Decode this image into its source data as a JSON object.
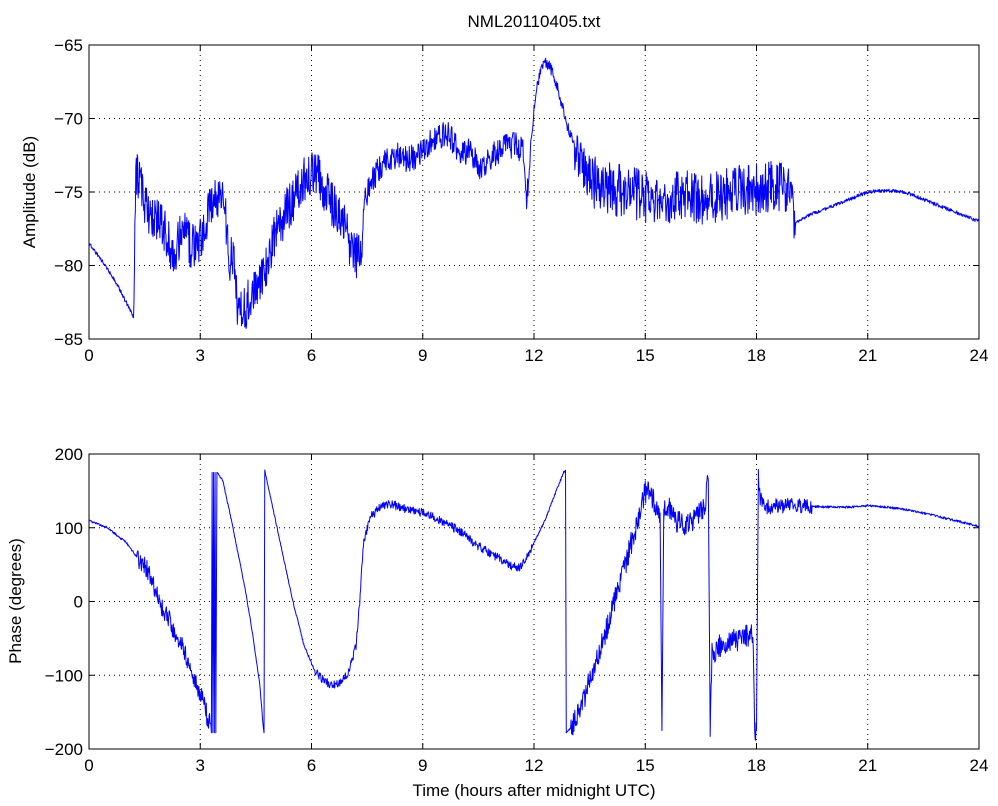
{
  "chart_data": [
    {
      "type": "line",
      "title": "NML20110405.txt",
      "xlabel": "",
      "ylabel": "Amplitude (dB)",
      "xlim": [
        0,
        24
      ],
      "ylim": [
        -85,
        -65
      ],
      "xticks": [
        "0",
        "3",
        "6",
        "9",
        "12",
        "15",
        "18",
        "21",
        "24"
      ],
      "yticks": [
        "−85",
        "−80",
        "−75",
        "−70",
        "−65"
      ],
      "grid": true,
      "colors": {
        "line": "#0000ff",
        "grid": "#000000",
        "axes": "#000000"
      },
      "series": [
        {
          "x": [
            0,
            0.3,
            0.7,
            1.0,
            1.15,
            1.2,
            1.25,
            1.3,
            1.5,
            1.7,
            1.9,
            2.1,
            2.3,
            2.5,
            2.7,
            2.9,
            3.1,
            3.3,
            3.5,
            3.65,
            3.8,
            3.9,
            4.0,
            4.2,
            4.4,
            4.6,
            4.8,
            5.0,
            5.2,
            5.4,
            5.5,
            5.7,
            5.9,
            6.1,
            6.3,
            6.5,
            6.7,
            6.9,
            7.1,
            7.3,
            7.35,
            7.4,
            7.6,
            7.8,
            8.0,
            8.3,
            8.6,
            8.9,
            9.2,
            9.5,
            9.7,
            10.0,
            10.3,
            10.6,
            10.9,
            11.2,
            11.5,
            11.7,
            11.8,
            11.85,
            11.9,
            12.0,
            12.1,
            12.3,
            12.5,
            12.7,
            12.9,
            13.1,
            13.3,
            13.5,
            13.8,
            14.1,
            14.5,
            15.0,
            15.5,
            16.0,
            16.5,
            17.0,
            17.5,
            18.0,
            18.5,
            18.9,
            19.05,
            19.1,
            19.5,
            20.0,
            20.5,
            21.0,
            21.5,
            22.0,
            22.5,
            23.0,
            23.5,
            24.0
          ],
          "y": [
            -78.5,
            -79.5,
            -81.0,
            -82.5,
            -83.2,
            -83.5,
            -75.0,
            -73.5,
            -76.0,
            -76.5,
            -76.8,
            -78.0,
            -79.5,
            -77.5,
            -78.5,
            -79.0,
            -77.5,
            -75.5,
            -75.5,
            -75.5,
            -80.0,
            -79.0,
            -82.5,
            -83.0,
            -82.0,
            -81.0,
            -80.0,
            -78.0,
            -77.0,
            -76.0,
            -75.5,
            -74.5,
            -74.0,
            -73.6,
            -74.5,
            -75.5,
            -76.5,
            -77.5,
            -79.0,
            -79.5,
            -80.0,
            -75.5,
            -74.5,
            -73.5,
            -73.0,
            -72.5,
            -72.8,
            -72.5,
            -71.5,
            -71.2,
            -71.0,
            -72.5,
            -72.2,
            -73.5,
            -72.5,
            -72.0,
            -71.8,
            -72.2,
            -75.5,
            -74.0,
            -72.0,
            -69.5,
            -67.5,
            -66.1,
            -66.8,
            -68.5,
            -70.5,
            -72.0,
            -73.5,
            -74.2,
            -74.5,
            -74.8,
            -75.0,
            -75.3,
            -75.5,
            -75.3,
            -75.5,
            -75.2,
            -75.0,
            -74.8,
            -74.6,
            -74.5,
            -77.2,
            -77.0,
            -76.5,
            -76.0,
            -75.5,
            -75.0,
            -74.9,
            -75.0,
            -75.5,
            -76.0,
            -76.5,
            -77.0
          ]
        }
      ]
    },
    {
      "type": "line",
      "title": "",
      "xlabel": "Time (hours after midnight UTC)",
      "ylabel": "Phase (degrees)",
      "xlim": [
        0,
        24
      ],
      "ylim": [
        -200,
        200
      ],
      "xticks": [
        "0",
        "3",
        "6",
        "9",
        "12",
        "15",
        "18",
        "21",
        "24"
      ],
      "yticks": [
        "−200",
        "−100",
        "0",
        "100",
        "200"
      ],
      "grid": true,
      "colors": {
        "line": "#0000ff",
        "grid": "#000000",
        "axes": "#000000"
      },
      "series": [
        {
          "x": [
            0,
            0.5,
            1.0,
            1.3,
            1.6,
            1.8,
            2.0,
            2.3,
            2.6,
            2.9,
            3.1,
            3.25,
            3.3,
            3.32,
            3.34,
            3.36,
            3.38,
            3.4,
            3.42,
            3.45,
            3.6,
            3.8,
            4.0,
            4.2,
            4.4,
            4.6,
            4.7,
            4.72,
            4.74,
            4.75,
            4.9,
            5.2,
            5.5,
            5.8,
            6.1,
            6.4,
            6.6,
            6.8,
            7.0,
            7.2,
            7.3,
            7.4,
            7.6,
            7.8,
            8.0,
            8.3,
            8.6,
            9.0,
            9.5,
            10.0,
            10.5,
            11.0,
            11.3,
            11.6,
            11.8,
            12.0,
            12.3,
            12.6,
            12.8,
            12.85,
            12.87,
            13.0,
            13.3,
            13.6,
            14.0,
            14.4,
            14.8,
            15.0,
            15.2,
            15.4,
            15.45,
            15.5,
            15.6,
            15.8,
            16.0,
            16.3,
            16.6,
            16.7,
            16.75,
            16.8,
            17.0,
            17.3,
            17.6,
            17.9,
            17.95,
            18.0,
            18.05,
            18.1,
            18.3,
            18.6,
            19.0,
            19.5,
            20.0,
            20.5,
            21.0,
            21.5,
            22.0,
            22.5,
            23.0,
            23.5,
            24.0
          ],
          "y": [
            110,
            100,
            80,
            60,
            40,
            10,
            -10,
            -40,
            -70,
            -110,
            -140,
            -165,
            -178,
            175,
            -178,
            175,
            -178,
            175,
            -178,
            175,
            165,
            120,
            70,
            20,
            -40,
            -110,
            -170,
            -178,
            178,
            175,
            140,
            70,
            0,
            -60,
            -95,
            -110,
            -112,
            -108,
            -95,
            -60,
            0,
            80,
            115,
            125,
            132,
            130,
            125,
            120,
            110,
            95,
            75,
            60,
            50,
            45,
            60,
            80,
            110,
            150,
            175,
            178,
            -178,
            -170,
            -140,
            -90,
            -30,
            40,
            110,
            150,
            140,
            120,
            -175,
            125,
            130,
            110,
            105,
            110,
            125,
            165,
            -170,
            -70,
            -60,
            -55,
            -50,
            -45,
            -175,
            -175,
            170,
            140,
            128,
            130,
            130,
            129,
            128,
            128,
            130,
            128,
            125,
            120,
            114,
            108,
            102
          ]
        }
      ]
    }
  ]
}
